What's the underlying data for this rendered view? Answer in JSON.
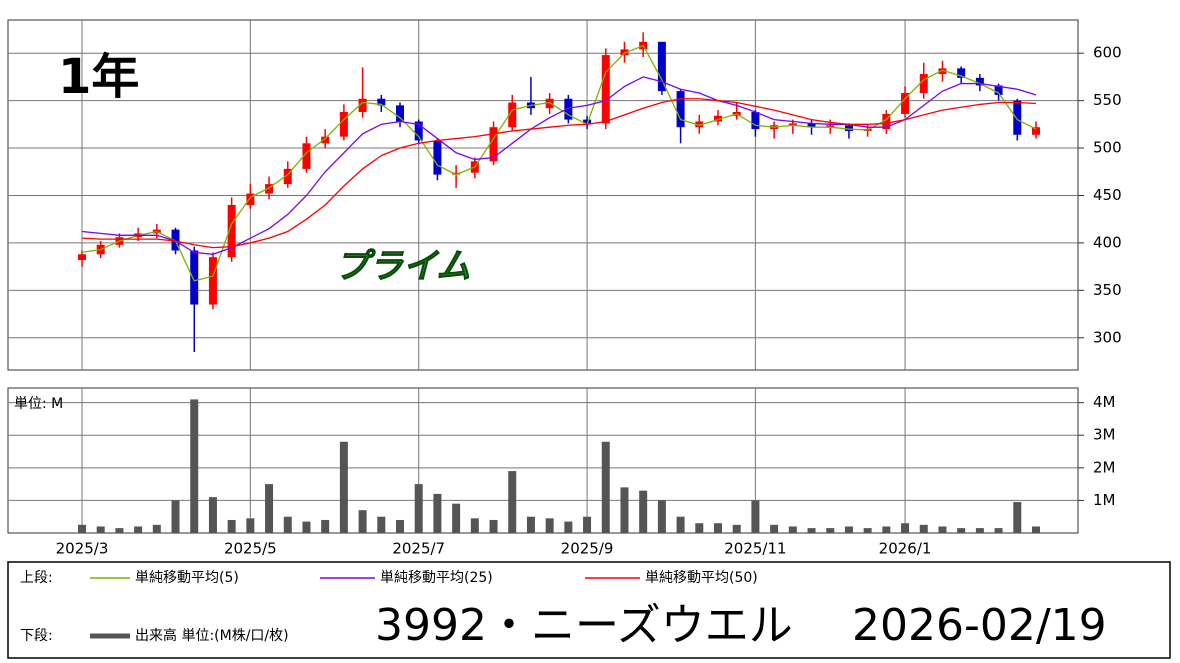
{
  "chart_data": [
    {
      "type": "candlestick",
      "period_label": "1年",
      "market": "プライム",
      "open": [
        382,
        388,
        398,
        406,
        410,
        414,
        392,
        335,
        385,
        440,
        452,
        462,
        478,
        505,
        512,
        538,
        552,
        545,
        528,
        508,
        472,
        474,
        486,
        522,
        548,
        542,
        552,
        530,
        526,
        598,
        604,
        612,
        560,
        522,
        528,
        534,
        538,
        520,
        524,
        526,
        522,
        524,
        518,
        520,
        536,
        558,
        578,
        584,
        574,
        566,
        550,
        514
      ],
      "high": [
        392,
        402,
        410,
        416,
        420,
        416,
        396,
        390,
        448,
        462,
        470,
        486,
        512,
        520,
        546,
        585,
        556,
        548,
        530,
        510,
        482,
        490,
        528,
        556,
        575,
        558,
        556,
        534,
        605,
        612,
        622,
        612,
        562,
        535,
        540,
        548,
        540,
        528,
        530,
        530,
        530,
        526,
        524,
        540,
        565,
        590,
        592,
        586,
        578,
        568,
        552,
        528
      ],
      "low": [
        375,
        384,
        395,
        402,
        405,
        388,
        285,
        330,
        380,
        436,
        446,
        458,
        474,
        500,
        508,
        532,
        538,
        522,
        504,
        466,
        458,
        468,
        482,
        518,
        535,
        536,
        526,
        520,
        520,
        590,
        596,
        556,
        505,
        515,
        524,
        530,
        512,
        510,
        515,
        514,
        515,
        510,
        512,
        515,
        532,
        552,
        570,
        568,
        560,
        550,
        508,
        510
      ],
      "close": [
        388,
        398,
        406,
        410,
        414,
        392,
        335,
        385,
        440,
        452,
        462,
        478,
        505,
        512,
        538,
        552,
        545,
        528,
        508,
        472,
        474,
        486,
        522,
        548,
        542,
        552,
        530,
        526,
        598,
        604,
        612,
        560,
        522,
        528,
        534,
        538,
        520,
        524,
        526,
        522,
        524,
        518,
        520,
        536,
        558,
        578,
        584,
        574,
        566,
        556,
        514,
        522
      ],
      "up_color": "#ff0000",
      "down_color": "#0000cc",
      "lines": [
        {
          "name": "単純移動平均(5)",
          "color": "#80b000",
          "values": [
            390,
            393,
            402,
            408,
            412,
            402,
            360,
            365,
            420,
            448,
            458,
            472,
            495,
            510,
            530,
            548,
            546,
            532,
            512,
            482,
            472,
            480,
            510,
            540,
            545,
            548,
            535,
            525,
            580,
            600,
            608,
            572,
            530,
            524,
            530,
            536,
            524,
            522,
            524,
            522,
            522,
            520,
            519,
            530,
            552,
            572,
            582,
            576,
            568,
            558,
            530,
            520
          ]
        },
        {
          "name": "単純移動平均(25)",
          "color": "#7a00ff",
          "values": [
            412,
            410,
            408,
            408,
            408,
            402,
            390,
            388,
            395,
            405,
            415,
            430,
            450,
            475,
            495,
            515,
            525,
            528,
            525,
            510,
            495,
            488,
            490,
            505,
            520,
            532,
            542,
            545,
            550,
            565,
            575,
            570,
            562,
            558,
            550,
            545,
            538,
            530,
            528,
            526,
            525,
            525,
            522,
            522,
            530,
            545,
            560,
            568,
            568,
            565,
            562,
            556
          ]
        },
        {
          "name": "単純移動平均(50)",
          "color": "#ff0000",
          "values": [
            405,
            404,
            404,
            404,
            404,
            402,
            398,
            395,
            396,
            400,
            405,
            412,
            425,
            440,
            460,
            478,
            492,
            500,
            505,
            508,
            510,
            512,
            515,
            518,
            520,
            522,
            524,
            525,
            528,
            535,
            542,
            548,
            552,
            552,
            550,
            548,
            544,
            540,
            535,
            530,
            527,
            525,
            525,
            526,
            530,
            535,
            540,
            543,
            546,
            548,
            548,
            547
          ]
        }
      ],
      "ylim": [
        266,
        635
      ],
      "yticks": [
        300,
        350,
        400,
        450,
        500,
        550,
        600
      ],
      "grid": true
    },
    {
      "type": "bar",
      "unit_label": "単位: M",
      "categories": [
        "2025/3",
        null,
        null,
        null,
        null,
        null,
        null,
        null,
        null,
        "2025/5",
        null,
        null,
        null,
        null,
        null,
        null,
        null,
        null,
        "2025/7",
        null,
        null,
        null,
        null,
        null,
        null,
        null,
        null,
        "2025/9",
        null,
        null,
        null,
        null,
        null,
        null,
        null,
        null,
        "2025/11",
        null,
        null,
        null,
        null,
        null,
        null,
        null,
        "2026/1",
        null,
        null,
        null,
        null,
        null,
        null,
        null
      ],
      "series": [
        {
          "name": "出来高 単位:(M株/口/枚)",
          "color": "#555555",
          "values": [
            0.25,
            0.2,
            0.15,
            0.2,
            0.25,
            1.0,
            4.1,
            1.1,
            0.4,
            0.45,
            1.5,
            0.5,
            0.35,
            0.4,
            2.8,
            0.7,
            0.5,
            0.4,
            1.5,
            1.2,
            0.9,
            0.45,
            0.4,
            1.9,
            0.5,
            0.45,
            0.35,
            0.5,
            2.8,
            1.4,
            1.3,
            1.0,
            0.5,
            0.3,
            0.3,
            0.25,
            1.0,
            0.25,
            0.2,
            0.15,
            0.15,
            0.2,
            0.15,
            0.2,
            0.3,
            0.25,
            0.2,
            0.15,
            0.15,
            0.15,
            0.95,
            0.2
          ]
        }
      ],
      "ylim": [
        0,
        4.45
      ],
      "yticks": [
        {
          "value": 1,
          "label": "1M"
        },
        {
          "value": 2,
          "label": "2M"
        },
        {
          "value": 3,
          "label": "3M"
        },
        {
          "value": 4,
          "label": "4M"
        }
      ],
      "grid": true
    }
  ],
  "footer": {
    "upper_label": "上段:",
    "lower_label": "下段:",
    "title": "3992・ニーズウエル",
    "date": "2026-02/19"
  }
}
